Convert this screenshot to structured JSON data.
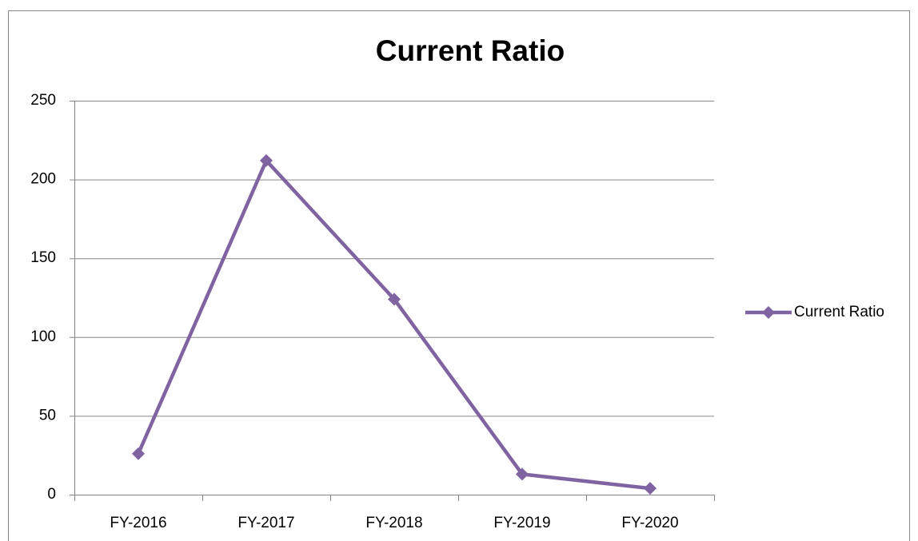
{
  "chart_data": {
    "type": "line",
    "title": "Current Ratio",
    "categories": [
      "FY-2016",
      "FY-2017",
      "FY-2018",
      "FY-2019",
      "FY-2020"
    ],
    "series": [
      {
        "name": "Current Ratio",
        "color": "#8064a2",
        "values": [
          26,
          212,
          124,
          13,
          4
        ]
      }
    ],
    "ylim": [
      0,
      250
    ],
    "yticks": [
      0,
      50,
      100,
      150,
      200,
      250
    ],
    "grid": true,
    "legend": "right"
  }
}
